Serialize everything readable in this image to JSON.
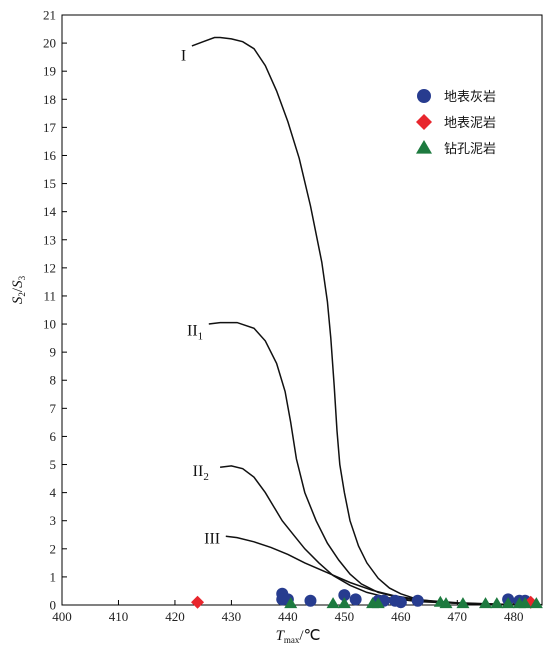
{
  "chart_data": {
    "type": "scatter",
    "x_label": {
      "main": "T",
      "sub": "max",
      "suffix": "/℃"
    },
    "y_label": {
      "part1": "S",
      "sub1": "2",
      "slash": "/",
      "part2": "S",
      "sub2": "3"
    },
    "xlim": [
      400,
      485
    ],
    "ylim": [
      0,
      21
    ],
    "x_ticks": [
      400,
      410,
      420,
      430,
      440,
      450,
      460,
      470,
      480
    ],
    "y_ticks": [
      0,
      1,
      2,
      3,
      4,
      5,
      6,
      7,
      8,
      9,
      10,
      11,
      12,
      13,
      14,
      15,
      16,
      17,
      18,
      19,
      20,
      21
    ],
    "grid": false,
    "legend_position": "top-right",
    "curves": [
      {
        "label": "I",
        "sub": "",
        "label_at": [
          422,
          19.6
        ],
        "points": [
          [
            423,
            19.9
          ],
          [
            425,
            20.05
          ],
          [
            427,
            20.2
          ],
          [
            428,
            20.2
          ],
          [
            430,
            20.15
          ],
          [
            432,
            20.05
          ],
          [
            434,
            19.8
          ],
          [
            436,
            19.2
          ],
          [
            438,
            18.3
          ],
          [
            440,
            17.2
          ],
          [
            442,
            15.9
          ],
          [
            444,
            14.2
          ],
          [
            446,
            12.2
          ],
          [
            447,
            10.8
          ],
          [
            447.6,
            9.5
          ],
          [
            448.2,
            7.8
          ],
          [
            448.7,
            6.2
          ],
          [
            449.2,
            5.0
          ],
          [
            450,
            4.0
          ],
          [
            451,
            3.0
          ],
          [
            452.5,
            2.1
          ],
          [
            454,
            1.5
          ],
          [
            456,
            0.95
          ],
          [
            458,
            0.6
          ],
          [
            460,
            0.4
          ],
          [
            463,
            0.2
          ],
          [
            467,
            0.1
          ],
          [
            472,
            0.05
          ],
          [
            478,
            0.02
          ],
          [
            485,
            0.01
          ]
        ]
      },
      {
        "label": "II",
        "sub": "1",
        "label_at": [
          425,
          9.8
        ],
        "points": [
          [
            426,
            10.0
          ],
          [
            428,
            10.05
          ],
          [
            431,
            10.05
          ],
          [
            434,
            9.85
          ],
          [
            436,
            9.4
          ],
          [
            438,
            8.6
          ],
          [
            439.5,
            7.6
          ],
          [
            440.5,
            6.5
          ],
          [
            441.5,
            5.2
          ],
          [
            443,
            4.0
          ],
          [
            445,
            3.0
          ],
          [
            447,
            2.2
          ],
          [
            449,
            1.6
          ],
          [
            451,
            1.1
          ],
          [
            453,
            0.75
          ],
          [
            456,
            0.45
          ],
          [
            460,
            0.25
          ],
          [
            465,
            0.12
          ],
          [
            470,
            0.06
          ],
          [
            478,
            0.02
          ],
          [
            485,
            0.01
          ]
        ]
      },
      {
        "label": "II",
        "sub": "2",
        "label_at": [
          426,
          4.8
        ],
        "points": [
          [
            428,
            4.9
          ],
          [
            430,
            4.95
          ],
          [
            432,
            4.85
          ],
          [
            434,
            4.55
          ],
          [
            436,
            4.0
          ],
          [
            437.5,
            3.5
          ],
          [
            439,
            3.0
          ],
          [
            441,
            2.5
          ],
          [
            443,
            2.0
          ],
          [
            445.5,
            1.5
          ],
          [
            448,
            1.05
          ],
          [
            451,
            0.7
          ],
          [
            454,
            0.45
          ],
          [
            458,
            0.25
          ],
          [
            463,
            0.12
          ],
          [
            470,
            0.06
          ],
          [
            478,
            0.02
          ],
          [
            485,
            0.01
          ]
        ]
      },
      {
        "label": "III",
        "sub": "",
        "label_at": [
          428,
          2.4
        ],
        "points": [
          [
            429,
            2.45
          ],
          [
            431,
            2.4
          ],
          [
            434,
            2.25
          ],
          [
            437,
            2.05
          ],
          [
            440,
            1.8
          ],
          [
            443,
            1.5
          ],
          [
            447,
            1.15
          ],
          [
            451,
            0.8
          ],
          [
            455,
            0.52
          ],
          [
            459,
            0.32
          ],
          [
            464,
            0.17
          ],
          [
            470,
            0.08
          ],
          [
            478,
            0.03
          ],
          [
            485,
            0.01
          ]
        ]
      }
    ],
    "series": [
      {
        "name": "地表灰岩",
        "marker": "circle",
        "color": "#273c8f",
        "points": [
          [
            439,
            0.4
          ],
          [
            439,
            0.2
          ],
          [
            440,
            0.2
          ],
          [
            444,
            0.15
          ],
          [
            450,
            0.35
          ],
          [
            452,
            0.2
          ],
          [
            456,
            0.15
          ],
          [
            457,
            0.15
          ],
          [
            459,
            0.15
          ],
          [
            460,
            0.1
          ],
          [
            463,
            0.15
          ],
          [
            479,
            0.2
          ],
          [
            481,
            0.15
          ],
          [
            482,
            0.15
          ]
        ]
      },
      {
        "name": "地表泥岩",
        "marker": "diamond",
        "color": "#e8262d",
        "points": [
          [
            424,
            0.1
          ],
          [
            483,
            0.1
          ]
        ]
      },
      {
        "name": "钻孔泥岩",
        "marker": "triangle",
        "color": "#1d7a3f",
        "points": [
          [
            440.5,
            0.05
          ],
          [
            448,
            0.05
          ],
          [
            450,
            0.05
          ],
          [
            455,
            0.05
          ],
          [
            456,
            0.05
          ],
          [
            467,
            0.1
          ],
          [
            468,
            0.05
          ],
          [
            471,
            0.05
          ],
          [
            475,
            0.05
          ],
          [
            477,
            0.05
          ],
          [
            479,
            0.05
          ],
          [
            481,
            0.05
          ],
          [
            482,
            0.05
          ],
          [
            484,
            0.05
          ]
        ]
      }
    ]
  }
}
